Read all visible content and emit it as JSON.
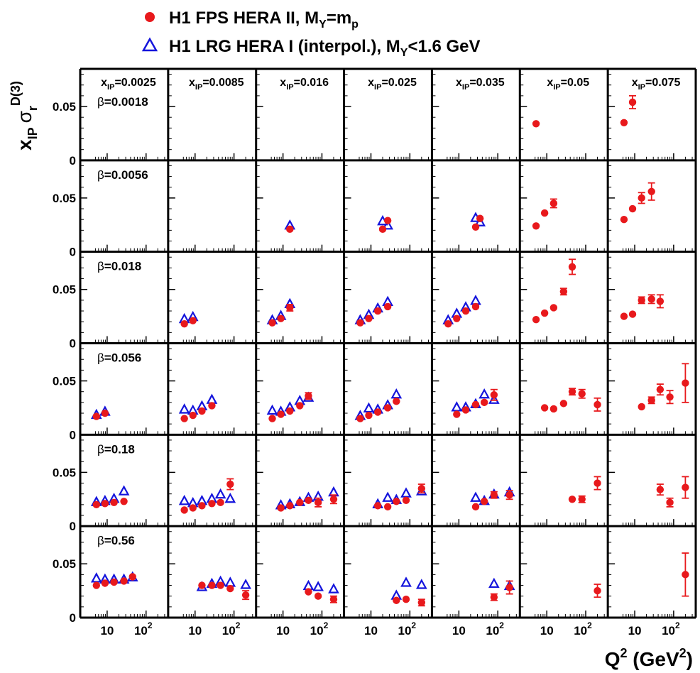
{
  "legend": {
    "items": [
      {
        "label": "H1 FPS HERA II,  M",
        "sub": "Y",
        "rest": "=m",
        "sub2": "p",
        "marker": "filled-circle",
        "color": "#e8191c"
      },
      {
        "label": "H1 LRG HERA I (interpol.),  M",
        "sub": "Y",
        "rest": "<1.6 GeV",
        "sub2": "",
        "marker": "open-triangle",
        "color": "#1414dc"
      }
    ]
  },
  "axes": {
    "ylabel": {
      "x": "x",
      "xsub": "IP",
      "sigma": "σ",
      "sigsub": "r",
      "sup": "D(3)"
    },
    "xlabel": {
      "main": "Q",
      "sup": "2",
      "unit": " (GeV",
      "unitsup": "2",
      "close": ")"
    },
    "yticks": [
      "0",
      "0.05"
    ],
    "xticks": [
      {
        "base": "10",
        "exp": ""
      },
      {
        "base": "10",
        "exp": "2"
      }
    ]
  },
  "colors": {
    "fps": "#e8191c",
    "lrg": "#1414dc"
  },
  "chart_data": {
    "type": "scatter",
    "layout": "grid 6 rows (beta) x 7 columns (x_IP)",
    "xlabel": "Q^2 (GeV^2)",
    "ylabel": "x_IP sigma_r^D(3)",
    "xscale": "log",
    "xlim": [
      4,
      300
    ],
    "ylim": [
      0,
      0.085
    ],
    "xIP": [
      "0.0025",
      "0.0085",
      "0.016",
      "0.025",
      "0.035",
      "0.05",
      "0.075"
    ],
    "xIP_label": "x",
    "xIP_sub": "IP",
    "beta": [
      "0.0018",
      "0.0056",
      "0.018",
      "0.056",
      "0.18",
      "0.56"
    ],
    "beta_label": "β",
    "series_names": [
      "H1 FPS HERA II, M_Y=m_p",
      "H1 LRG HERA I (interpol.), M_Y<1.6 GeV"
    ],
    "panels": [
      {
        "row": 0,
        "col": 5,
        "fps": [
          [
            5.3,
            0.034,
            0
          ]
        ],
        "lrg": []
      },
      {
        "row": 0,
        "col": 6,
        "fps": [
          [
            5.3,
            0.035,
            0
          ],
          [
            8.8,
            0.054,
            0.006
          ]
        ],
        "lrg": []
      },
      {
        "row": 1,
        "col": 2,
        "fps": [
          [
            15,
            0.021,
            0
          ]
        ],
        "lrg": [
          [
            15,
            0.024
          ]
        ]
      },
      {
        "row": 1,
        "col": 3,
        "fps": [
          [
            20,
            0.021,
            0
          ],
          [
            27,
            0.029,
            0
          ]
        ],
        "lrg": [
          [
            20,
            0.028
          ],
          [
            27,
            0.024
          ]
        ]
      },
      {
        "row": 1,
        "col": 4,
        "fps": [
          [
            27,
            0.023,
            0
          ],
          [
            35,
            0.031,
            0
          ]
        ],
        "lrg": [
          [
            27,
            0.031
          ],
          [
            35,
            0.027
          ]
        ]
      },
      {
        "row": 1,
        "col": 5,
        "fps": [
          [
            5.3,
            0.024,
            0
          ],
          [
            8.8,
            0.036,
            0
          ],
          [
            15,
            0.045,
            0.004
          ]
        ],
        "lrg": []
      },
      {
        "row": 1,
        "col": 6,
        "fps": [
          [
            5.3,
            0.03,
            0
          ],
          [
            8.8,
            0.04,
            0
          ],
          [
            15,
            0.05,
            0.005
          ],
          [
            27,
            0.056,
            0.008
          ]
        ],
        "lrg": []
      },
      {
        "row": 2,
        "col": 1,
        "fps": [
          [
            5.3,
            0.018,
            0
          ],
          [
            8.8,
            0.021,
            0
          ]
        ],
        "lrg": [
          [
            5.3,
            0.022
          ],
          [
            8.8,
            0.024
          ]
        ]
      },
      {
        "row": 2,
        "col": 2,
        "fps": [
          [
            5.3,
            0.019,
            0
          ],
          [
            8.8,
            0.023,
            0
          ],
          [
            15,
            0.033,
            0.003
          ]
        ],
        "lrg": [
          [
            5.3,
            0.021
          ],
          [
            8.8,
            0.025
          ],
          [
            15,
            0.036
          ]
        ]
      },
      {
        "row": 2,
        "col": 3,
        "fps": [
          [
            5.3,
            0.019,
            0
          ],
          [
            8.8,
            0.023,
            0
          ],
          [
            15,
            0.03,
            0
          ],
          [
            27,
            0.034,
            0
          ]
        ],
        "lrg": [
          [
            5.3,
            0.021
          ],
          [
            8.8,
            0.026
          ],
          [
            15,
            0.032
          ],
          [
            27,
            0.038
          ]
        ]
      },
      {
        "row": 2,
        "col": 4,
        "fps": [
          [
            5.3,
            0.018,
            0
          ],
          [
            8.8,
            0.023,
            0
          ],
          [
            15,
            0.03,
            0
          ],
          [
            27,
            0.034,
            0
          ]
        ],
        "lrg": [
          [
            5.3,
            0.021
          ],
          [
            8.8,
            0.027
          ],
          [
            15,
            0.033
          ],
          [
            27,
            0.039
          ]
        ]
      },
      {
        "row": 2,
        "col": 5,
        "fps": [
          [
            5.3,
            0.022,
            0
          ],
          [
            8.8,
            0.028,
            0
          ],
          [
            15,
            0.033,
            0
          ],
          [
            27,
            0.048,
            0.003
          ],
          [
            45,
            0.071,
            0.007
          ]
        ],
        "lrg": []
      },
      {
        "row": 2,
        "col": 6,
        "fps": [
          [
            5.3,
            0.025,
            0
          ],
          [
            8.8,
            0.027,
            0
          ],
          [
            15,
            0.04,
            0.003
          ],
          [
            27,
            0.041,
            0.004
          ],
          [
            45,
            0.039,
            0.006
          ]
        ],
        "lrg": []
      },
      {
        "row": 3,
        "col": 0,
        "fps": [
          [
            5.3,
            0.017,
            0
          ],
          [
            8.8,
            0.02,
            0
          ]
        ],
        "lrg": [
          [
            5.3,
            0.018
          ],
          [
            8.8,
            0.021
          ]
        ]
      },
      {
        "row": 3,
        "col": 1,
        "fps": [
          [
            5.3,
            0.015,
            0
          ],
          [
            8.8,
            0.018,
            0
          ],
          [
            15,
            0.022,
            0
          ],
          [
            27,
            0.027,
            0
          ]
        ],
        "lrg": [
          [
            5.3,
            0.023
          ],
          [
            8.8,
            0.022
          ],
          [
            15,
            0.026
          ],
          [
            27,
            0.032
          ]
        ]
      },
      {
        "row": 3,
        "col": 2,
        "fps": [
          [
            5.3,
            0.015,
            0
          ],
          [
            8.8,
            0.019,
            0
          ],
          [
            15,
            0.022,
            0
          ],
          [
            27,
            0.027,
            0
          ],
          [
            45,
            0.036,
            0.003
          ]
        ],
        "lrg": [
          [
            5.3,
            0.022
          ],
          [
            8.8,
            0.021
          ],
          [
            15,
            0.025
          ],
          [
            27,
            0.031
          ],
          [
            45,
            0.034
          ]
        ]
      },
      {
        "row": 3,
        "col": 3,
        "fps": [
          [
            5.3,
            0.015,
            0
          ],
          [
            8.8,
            0.018,
            0
          ],
          [
            15,
            0.021,
            0
          ],
          [
            27,
            0.025,
            0
          ],
          [
            45,
            0.031,
            0
          ]
        ],
        "lrg": [
          [
            5.3,
            0.017
          ],
          [
            8.8,
            0.024
          ],
          [
            15,
            0.023
          ],
          [
            27,
            0.027
          ],
          [
            45,
            0.037
          ]
        ]
      },
      {
        "row": 3,
        "col": 4,
        "fps": [
          [
            8.8,
            0.019,
            0
          ],
          [
            15,
            0.023,
            0
          ],
          [
            27,
            0.028,
            0
          ],
          [
            45,
            0.03,
            0
          ],
          [
            80,
            0.037,
            0.005
          ]
        ],
        "lrg": [
          [
            8.8,
            0.025
          ],
          [
            15,
            0.025
          ],
          [
            27,
            0.028
          ],
          [
            45,
            0.037
          ],
          [
            80,
            0.032
          ]
        ]
      },
      {
        "row": 3,
        "col": 5,
        "fps": [
          [
            8.8,
            0.025,
            0
          ],
          [
            15,
            0.024,
            0
          ],
          [
            27,
            0.029,
            0
          ],
          [
            45,
            0.04,
            0.003
          ],
          [
            80,
            0.038,
            0.004
          ],
          [
            200,
            0.028,
            0.006
          ]
        ],
        "lrg": []
      },
      {
        "row": 3,
        "col": 6,
        "fps": [
          [
            15,
            0.026,
            0
          ],
          [
            27,
            0.032,
            0.003
          ],
          [
            45,
            0.042,
            0.005
          ],
          [
            80,
            0.035,
            0.006
          ],
          [
            200,
            0.048,
            0.018
          ]
        ],
        "lrg": []
      },
      {
        "row": 4,
        "col": 0,
        "fps": [
          [
            5.3,
            0.02,
            0
          ],
          [
            8.8,
            0.021,
            0
          ],
          [
            15,
            0.022,
            0
          ],
          [
            27,
            0.023,
            0
          ]
        ],
        "lrg": [
          [
            5.3,
            0.022
          ],
          [
            8.8,
            0.023
          ],
          [
            15,
            0.025
          ],
          [
            27,
            0.032
          ]
        ]
      },
      {
        "row": 4,
        "col": 1,
        "fps": [
          [
            5.3,
            0.015,
            0
          ],
          [
            8.8,
            0.017,
            0
          ],
          [
            15,
            0.019,
            0
          ],
          [
            27,
            0.021,
            0
          ],
          [
            45,
            0.022,
            0
          ],
          [
            80,
            0.039,
            0.005
          ]
        ],
        "lrg": [
          [
            5.3,
            0.023
          ],
          [
            8.8,
            0.021
          ],
          [
            15,
            0.023
          ],
          [
            27,
            0.025
          ],
          [
            45,
            0.029
          ],
          [
            80,
            0.025
          ]
        ]
      },
      {
        "row": 4,
        "col": 2,
        "fps": [
          [
            8.8,
            0.017,
            0
          ],
          [
            15,
            0.019,
            0
          ],
          [
            27,
            0.022,
            0
          ],
          [
            45,
            0.024,
            0
          ],
          [
            80,
            0.022,
            0.004
          ],
          [
            200,
            0.025,
            0.004
          ]
        ],
        "lrg": [
          [
            8.8,
            0.019
          ],
          [
            15,
            0.02
          ],
          [
            27,
            0.022
          ],
          [
            45,
            0.026
          ],
          [
            80,
            0.027
          ],
          [
            200,
            0.031
          ]
        ]
      },
      {
        "row": 4,
        "col": 3,
        "fps": [
          [
            15,
            0.019,
            0
          ],
          [
            27,
            0.018,
            0
          ],
          [
            45,
            0.023,
            0
          ],
          [
            80,
            0.024,
            0
          ],
          [
            200,
            0.035,
            0.004
          ]
        ],
        "lrg": [
          [
            15,
            0.02
          ],
          [
            27,
            0.026
          ],
          [
            45,
            0.024
          ],
          [
            80,
            0.03
          ],
          [
            200,
            0.032
          ]
        ]
      },
      {
        "row": 4,
        "col": 4,
        "fps": [
          [
            27,
            0.018,
            0
          ],
          [
            45,
            0.023,
            0
          ],
          [
            80,
            0.029,
            0.003
          ],
          [
            200,
            0.029,
            0.004
          ]
        ],
        "lrg": [
          [
            27,
            0.026
          ],
          [
            45,
            0.023
          ],
          [
            80,
            0.029
          ],
          [
            200,
            0.031
          ]
        ]
      },
      {
        "row": 4,
        "col": 5,
        "fps": [
          [
            45,
            0.025,
            0
          ],
          [
            80,
            0.025,
            0.003
          ],
          [
            200,
            0.04,
            0.006
          ]
        ],
        "lrg": []
      },
      {
        "row": 4,
        "col": 6,
        "fps": [
          [
            45,
            0.034,
            0.005
          ],
          [
            80,
            0.022,
            0.004
          ],
          [
            200,
            0.036,
            0.01
          ]
        ],
        "lrg": []
      },
      {
        "row": 5,
        "col": 0,
        "fps": [
          [
            5.3,
            0.03,
            0
          ],
          [
            8.8,
            0.032,
            0
          ],
          [
            15,
            0.033,
            0
          ],
          [
            27,
            0.034,
            0
          ],
          [
            45,
            0.038,
            0
          ]
        ],
        "lrg": [
          [
            5.3,
            0.036
          ],
          [
            8.8,
            0.035
          ],
          [
            15,
            0.035
          ],
          [
            27,
            0.035
          ],
          [
            45,
            0.037
          ]
        ]
      },
      {
        "row": 5,
        "col": 1,
        "fps": [
          [
            15,
            0.03,
            0
          ],
          [
            27,
            0.03,
            0
          ],
          [
            45,
            0.03,
            0
          ],
          [
            80,
            0.027,
            0
          ],
          [
            200,
            0.021,
            0.004
          ]
        ],
        "lrg": [
          [
            15,
            0.028
          ],
          [
            27,
            0.031
          ],
          [
            45,
            0.033
          ],
          [
            80,
            0.032
          ],
          [
            200,
            0.03
          ]
        ]
      },
      {
        "row": 5,
        "col": 2,
        "fps": [
          [
            45,
            0.024,
            0
          ],
          [
            80,
            0.02,
            0
          ],
          [
            200,
            0.017,
            0.003
          ]
        ],
        "lrg": [
          [
            45,
            0.029
          ],
          [
            80,
            0.028
          ],
          [
            200,
            0.026
          ]
        ]
      },
      {
        "row": 5,
        "col": 3,
        "fps": [
          [
            45,
            0.016,
            0
          ],
          [
            80,
            0.017,
            0
          ],
          [
            200,
            0.014,
            0.003
          ]
        ],
        "lrg": [
          [
            45,
            0.02
          ],
          [
            80,
            0.032
          ],
          [
            200,
            0.03
          ]
        ]
      },
      {
        "row": 5,
        "col": 4,
        "fps": [
          [
            80,
            0.019,
            0.003
          ],
          [
            200,
            0.028,
            0.006
          ]
        ],
        "lrg": [
          [
            80,
            0.031
          ],
          [
            200,
            0.029
          ]
        ]
      },
      {
        "row": 5,
        "col": 5,
        "fps": [
          [
            200,
            0.025,
            0.006
          ]
        ],
        "lrg": []
      },
      {
        "row": 5,
        "col": 6,
        "fps": [
          [
            200,
            0.04,
            0.02
          ]
        ],
        "lrg": []
      }
    ]
  }
}
